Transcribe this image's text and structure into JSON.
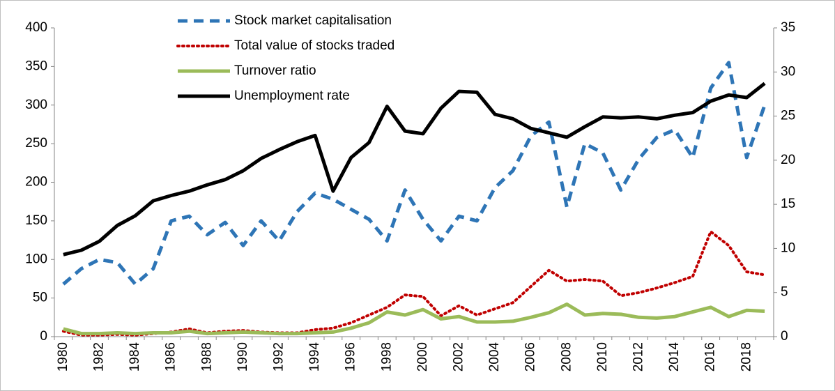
{
  "chart_data": {
    "type": "line",
    "categories": [
      "1980",
      null,
      "1982",
      null,
      "1984",
      null,
      "1986",
      null,
      "1988",
      null,
      "1990",
      null,
      "1992",
      null,
      "1994",
      null,
      "1996",
      null,
      "1998",
      null,
      "2000",
      null,
      "2002",
      null,
      "2004",
      null,
      "2006",
      null,
      "2008",
      null,
      "2010",
      null,
      "2012",
      null,
      "2014",
      null,
      "2016",
      null,
      "2018",
      null
    ],
    "series": [
      {
        "name": "Stock market capitalisation",
        "color": "#2e75b6",
        "dash": "dashed",
        "axis": "y",
        "values": [
          68,
          88,
          100,
          96,
          68,
          88,
          150,
          156,
          132,
          148,
          118,
          150,
          124,
          162,
          186,
          178,
          165,
          152,
          124,
          190,
          152,
          124,
          156,
          150,
          193,
          215,
          260,
          278,
          168,
          250,
          238,
          190,
          230,
          258,
          268,
          232,
          322,
          355,
          232,
          300
        ]
      },
      {
        "name": "Total value of stocks traded",
        "color": "#c00000",
        "dash": "dotted",
        "axis": "y",
        "values": [
          7,
          2,
          2,
          3,
          2,
          4,
          6,
          10,
          5,
          7,
          8,
          6,
          5,
          5,
          9,
          11,
          18,
          28,
          38,
          54,
          52,
          27,
          40,
          28,
          36,
          44,
          65,
          86,
          72,
          74,
          72,
          53,
          57,
          63,
          70,
          78,
          136,
          118,
          84,
          80
        ]
      },
      {
        "name": "Turnover ratio",
        "color": "#9bbb59",
        "dash": "solid",
        "axis": "y",
        "values": [
          10,
          4,
          4,
          5,
          4,
          5,
          5,
          7,
          4,
          5,
          6,
          5,
          4,
          4,
          5,
          6,
          11,
          18,
          32,
          28,
          35,
          23,
          26,
          19,
          19,
          20,
          25,
          31,
          42,
          28,
          30,
          29,
          25,
          24,
          26,
          32,
          38,
          26,
          34,
          33
        ]
      },
      {
        "name": "Unemployment rate",
        "color": "#000000",
        "dash": "solid",
        "axis": "y2",
        "values": [
          9.3,
          9.8,
          10.8,
          12.6,
          13.7,
          15.4,
          16.0,
          16.5,
          17.2,
          17.8,
          18.8,
          20.2,
          21.2,
          22.1,
          22.8,
          16.5,
          20.3,
          22.0,
          26.1,
          23.3,
          23.0,
          25.9,
          27.8,
          27.7,
          25.2,
          24.7,
          23.6,
          23.1,
          22.6,
          23.8,
          24.9,
          24.8,
          24.9,
          24.7,
          25.1,
          25.4,
          26.7,
          27.4,
          27.1,
          28.7
        ]
      }
    ],
    "ylim": [
      0,
      400
    ],
    "yticks": [
      0,
      50,
      100,
      150,
      200,
      250,
      300,
      350,
      400
    ],
    "y2lim": [
      0,
      35
    ],
    "y2ticks": [
      0,
      5,
      10,
      15,
      20,
      25,
      30,
      35
    ],
    "grid": false,
    "legend": "top"
  }
}
